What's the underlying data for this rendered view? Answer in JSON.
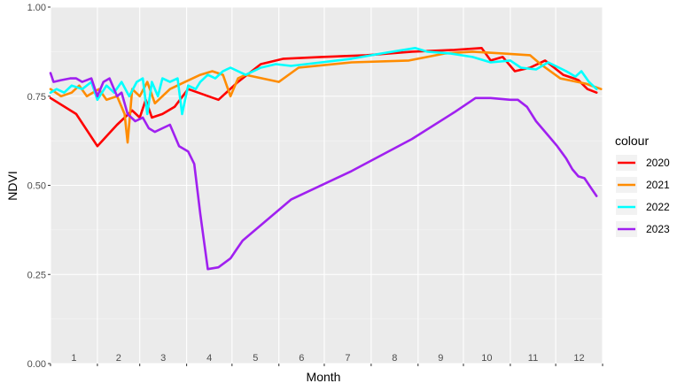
{
  "chart_data": {
    "type": "line",
    "xlabel": "Month",
    "ylabel": "NDVI",
    "ylim": [
      0,
      1
    ],
    "xlim": [
      1,
      366
    ],
    "yticks": [
      0.0,
      0.25,
      0.5,
      0.75,
      1.0
    ],
    "ytick_labels": [
      "0.00",
      "0.25",
      "0.50",
      "0.75",
      "1.00"
    ],
    "month_labels": [
      "1",
      "2",
      "3",
      "4",
      "5",
      "6",
      "7",
      "8",
      "9",
      "10",
      "11",
      "12"
    ],
    "month_starts": [
      1,
      32,
      60,
      91,
      121,
      152,
      182,
      213,
      244,
      274,
      305,
      335,
      366
    ],
    "grid": true,
    "legend_title": "colour",
    "legend_position": "right",
    "series": [
      {
        "name": "2020",
        "color": "#ff0000",
        "x": [
          1,
          18,
          32,
          45,
          55,
          60,
          64,
          68,
          75,
          83,
          92,
          112,
          125,
          140,
          155,
          180,
          210,
          240,
          268,
          286,
          292,
          300,
          308,
          318,
          328,
          340,
          347,
          350,
          356,
          362
        ],
        "y": [
          0.745,
          0.7,
          0.61,
          0.67,
          0.71,
          0.69,
          0.74,
          0.69,
          0.7,
          0.72,
          0.77,
          0.74,
          0.79,
          0.84,
          0.855,
          0.86,
          0.865,
          0.875,
          0.88,
          0.885,
          0.85,
          0.86,
          0.82,
          0.83,
          0.85,
          0.81,
          0.8,
          0.795,
          0.77,
          0.76
        ]
      },
      {
        "name": "2021",
        "color": "#ff8c00",
        "x": [
          1,
          8,
          15,
          20,
          25,
          33,
          38,
          45,
          50,
          52,
          55,
          60,
          65,
          70,
          80,
          90,
          100,
          108,
          115,
          120,
          125,
          130,
          152,
          165,
          200,
          238,
          262,
          280,
          300,
          318,
          325,
          338,
          355,
          365
        ],
        "y": [
          0.77,
          0.75,
          0.76,
          0.78,
          0.75,
          0.77,
          0.74,
          0.75,
          0.7,
          0.62,
          0.77,
          0.75,
          0.79,
          0.73,
          0.77,
          0.79,
          0.81,
          0.82,
          0.81,
          0.75,
          0.8,
          0.81,
          0.79,
          0.83,
          0.845,
          0.85,
          0.87,
          0.875,
          0.87,
          0.865,
          0.84,
          0.8,
          0.785,
          0.77
        ]
      },
      {
        "name": "2022",
        "color": "#00ffff",
        "x": [
          1,
          5,
          10,
          15,
          22,
          28,
          32,
          38,
          43,
          48,
          53,
          58,
          62,
          65,
          68,
          72,
          75,
          80,
          85,
          88,
          92,
          97,
          100,
          105,
          110,
          115,
          120,
          130,
          140,
          150,
          160,
          180,
          200,
          220,
          242,
          250,
          265,
          280,
          292,
          305,
          312,
          322,
          330,
          342,
          348,
          352,
          357,
          362
        ],
        "y": [
          0.76,
          0.77,
          0.76,
          0.78,
          0.77,
          0.79,
          0.74,
          0.78,
          0.76,
          0.79,
          0.75,
          0.79,
          0.8,
          0.7,
          0.79,
          0.75,
          0.8,
          0.79,
          0.8,
          0.7,
          0.78,
          0.77,
          0.79,
          0.81,
          0.8,
          0.82,
          0.83,
          0.81,
          0.83,
          0.84,
          0.835,
          0.845,
          0.855,
          0.87,
          0.885,
          0.875,
          0.87,
          0.86,
          0.845,
          0.85,
          0.83,
          0.825,
          0.845,
          0.82,
          0.805,
          0.82,
          0.79,
          0.77
        ]
      },
      {
        "name": "2023",
        "color": "#a020f0",
        "x": [
          1,
          3,
          8,
          14,
          18,
          22,
          28,
          32,
          36,
          40,
          45,
          48,
          52,
          57,
          62,
          66,
          70,
          75,
          80,
          86,
          92,
          96,
          100,
          105,
          112,
          120,
          124,
          128,
          135,
          160,
          200,
          240,
          268,
          282,
          292,
          305,
          310,
          316,
          322,
          330,
          336,
          342,
          346,
          350,
          354,
          358,
          362
        ],
        "y": [
          0.815,
          0.79,
          0.795,
          0.8,
          0.8,
          0.79,
          0.8,
          0.75,
          0.79,
          0.8,
          0.75,
          0.76,
          0.7,
          0.68,
          0.69,
          0.66,
          0.65,
          0.66,
          0.67,
          0.61,
          0.595,
          0.56,
          0.42,
          0.265,
          0.27,
          0.295,
          0.32,
          0.345,
          0.37,
          0.46,
          0.54,
          0.63,
          0.705,
          0.745,
          0.745,
          0.74,
          0.74,
          0.72,
          0.68,
          0.64,
          0.61,
          0.575,
          0.545,
          0.525,
          0.52,
          0.495,
          0.47
        ]
      }
    ]
  }
}
